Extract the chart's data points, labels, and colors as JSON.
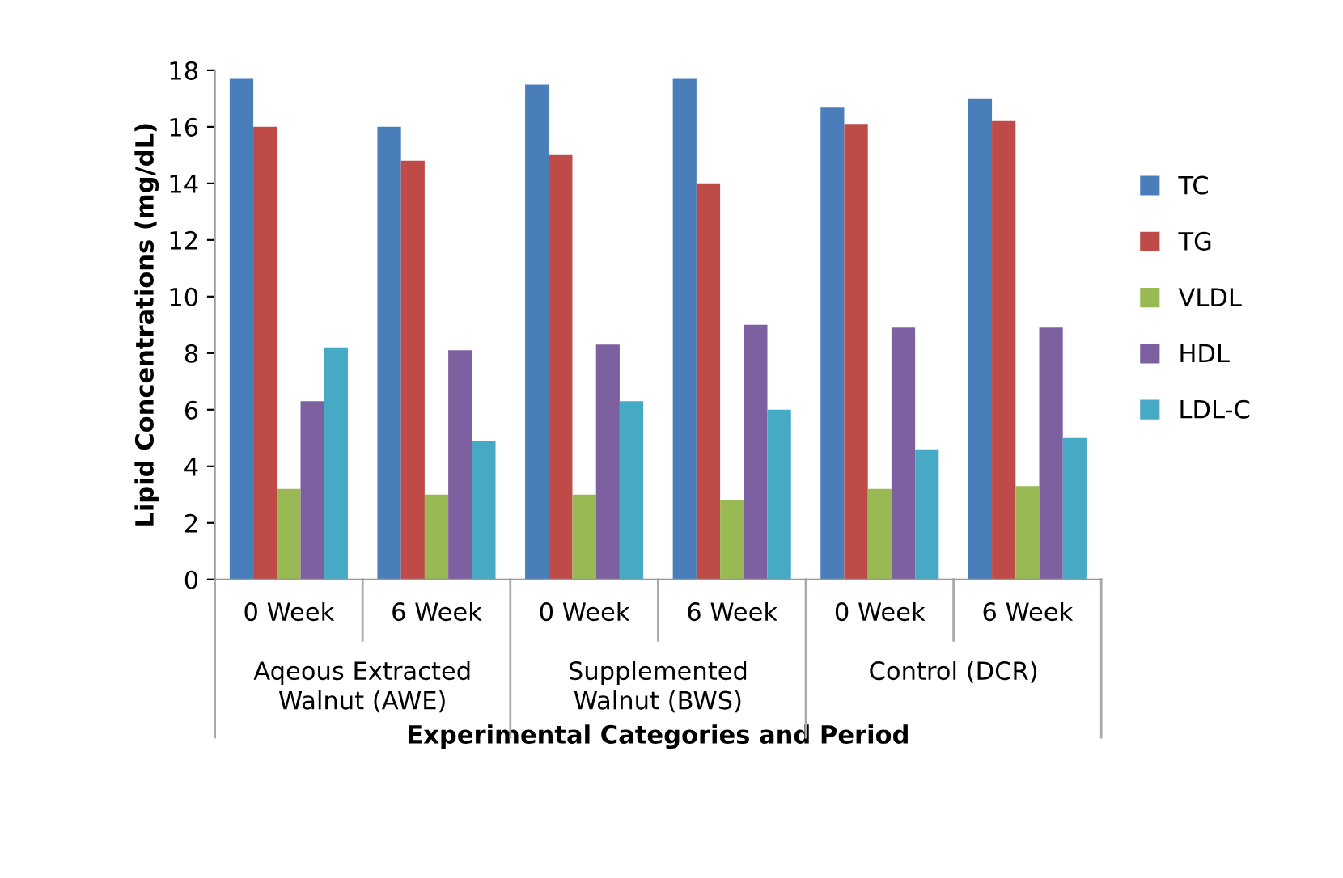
{
  "chart_data": {
    "type": "bar",
    "xlabel": "Experimental Categories and Period",
    "ylabel": "Lipid Concentrations (mg/dL)",
    "categories": [
      "0 Week",
      "6 Week",
      "0 Week",
      "6 Week",
      "0 Week",
      "6 Week"
    ],
    "annotations": [
      "Aqeous Extracted\nWalnut (AWE)",
      "Supplemented\nWalnut (BWS)",
      "Control (DCR)"
    ],
    "series": [
      {
        "name": "TC",
        "color": "#4a7ebb",
        "values": [
          17.7,
          16.0,
          17.5,
          17.7,
          16.7,
          17.0
        ]
      },
      {
        "name": "TG",
        "color": "#be4b48",
        "values": [
          16.0,
          14.8,
          15.0,
          14.0,
          16.1,
          16.2
        ]
      },
      {
        "name": "VLDL",
        "color": "#98b954",
        "values": [
          3.2,
          3.0,
          3.0,
          2.8,
          3.2,
          3.3
        ]
      },
      {
        "name": "HDL",
        "color": "#7d60a0",
        "values": [
          6.3,
          8.1,
          8.3,
          9.0,
          8.9,
          8.9
        ]
      },
      {
        "name": "LDL-C",
        "color": "#46aac5",
        "values": [
          8.2,
          4.9,
          6.3,
          6.0,
          4.6,
          5.0
        ]
      }
    ],
    "ylim": [
      0,
      18
    ],
    "yticks": [
      0,
      2,
      4,
      6,
      8,
      10,
      12,
      14,
      16,
      18
    ],
    "grid": false,
    "legend": "right"
  }
}
